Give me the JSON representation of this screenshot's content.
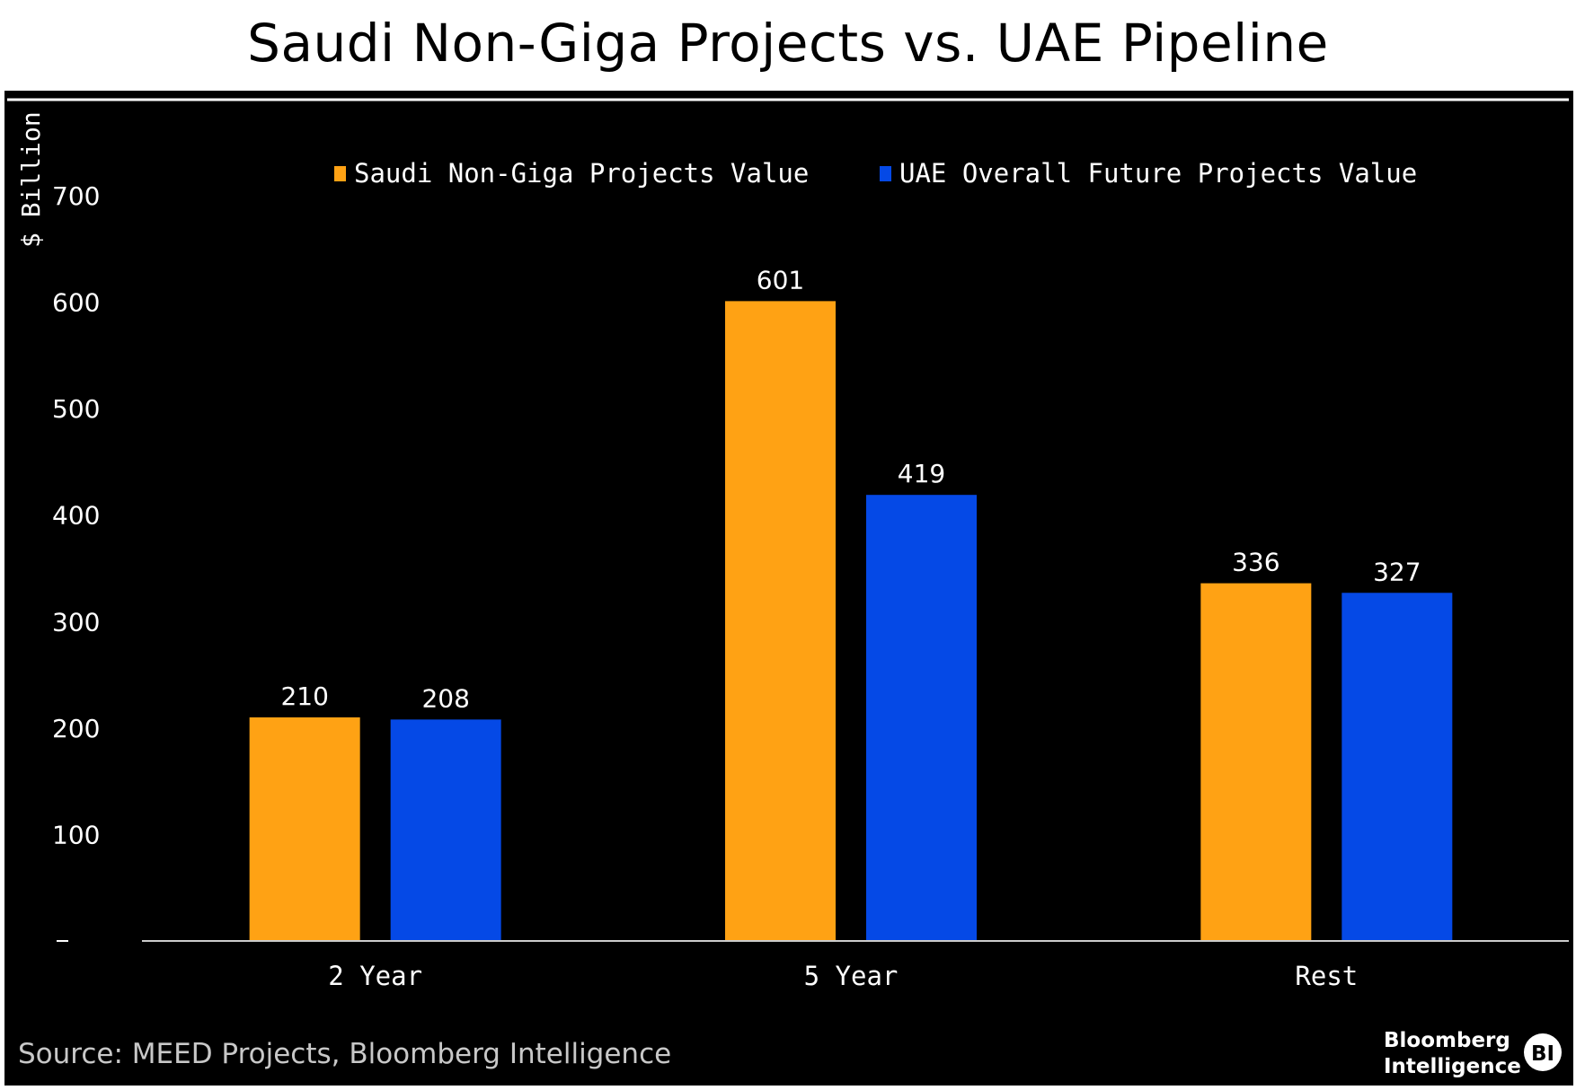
{
  "chart_data": {
    "type": "bar",
    "title": "Saudi Non-Giga Projects vs. UAE Pipeline",
    "ylabel": "$ Billion",
    "xlabel": "",
    "categories": [
      "2 Year",
      "5 Year",
      "Rest"
    ],
    "series": [
      {
        "name": "Saudi Non-Giga Projects Value",
        "color": "#FFA214",
        "values": [
          210,
          601,
          336
        ]
      },
      {
        "name": "UAE Overall Future Projects Value",
        "color": "#0549E6",
        "values": [
          208,
          419,
          327
        ]
      }
    ],
    "ylim": [
      0,
      700
    ],
    "yticks": [
      0,
      100,
      200,
      300,
      400,
      500,
      600,
      700
    ],
    "ytick_labels": [
      "-",
      "100",
      "200",
      "300",
      "400",
      "500",
      "600",
      "700"
    ],
    "legend_position": "top",
    "grid": false,
    "source": "Source: MEED Projects, Bloomberg Intelligence"
  },
  "branding": {
    "logo_line1": "Bloomberg",
    "logo_line2": "Intelligence",
    "badge": "BI"
  },
  "colors": {
    "background": "#000000",
    "text": "#FFFFFF",
    "axis": "#CCCCCC"
  }
}
